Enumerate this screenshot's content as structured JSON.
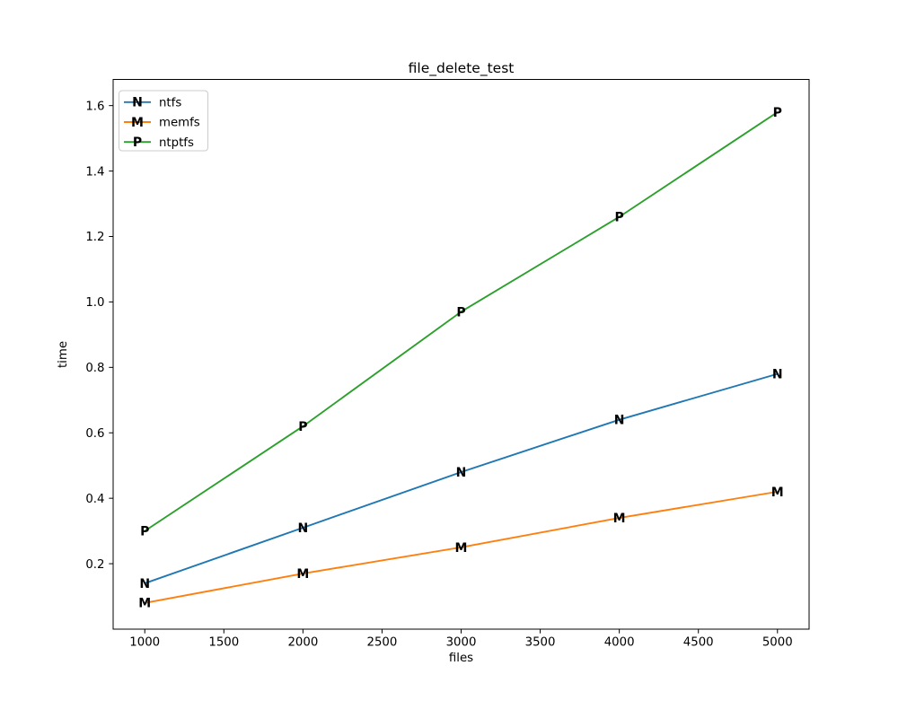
{
  "figure": {
    "title": "file_delete_test",
    "xlabel": "files",
    "ylabel": "time"
  },
  "chart_data": {
    "type": "line",
    "title": "file_delete_test",
    "xlabel": "files",
    "ylabel": "time",
    "x": [
      1000,
      2000,
      3000,
      4000,
      5000
    ],
    "series": [
      {
        "name": "ntfs",
        "marker": "N",
        "color": "#1f77b4",
        "values": [
          0.14,
          0.31,
          0.48,
          0.64,
          0.78
        ]
      },
      {
        "name": "memfs",
        "marker": "M",
        "color": "#ff7f0e",
        "values": [
          0.08,
          0.17,
          0.25,
          0.34,
          0.42
        ]
      },
      {
        "name": "ntptfs",
        "marker": "P",
        "color": "#2ca02c",
        "values": [
          0.3,
          0.62,
          0.97,
          1.26,
          1.58
        ]
      }
    ],
    "xticks": [
      1000,
      1500,
      2000,
      2500,
      3000,
      3500,
      4000,
      4500,
      5000
    ],
    "yticks": [
      0.2,
      0.4,
      0.6,
      0.8,
      1.0,
      1.2,
      1.4,
      1.6
    ],
    "xlim": [
      800,
      5200
    ],
    "ylim": [
      0,
      1.68
    ],
    "grid": false,
    "legend_position": "upper left",
    "colors": {
      "spine": "#000000",
      "text": "#000000",
      "legend_border": "#cccccc",
      "background": "#ffffff"
    }
  }
}
